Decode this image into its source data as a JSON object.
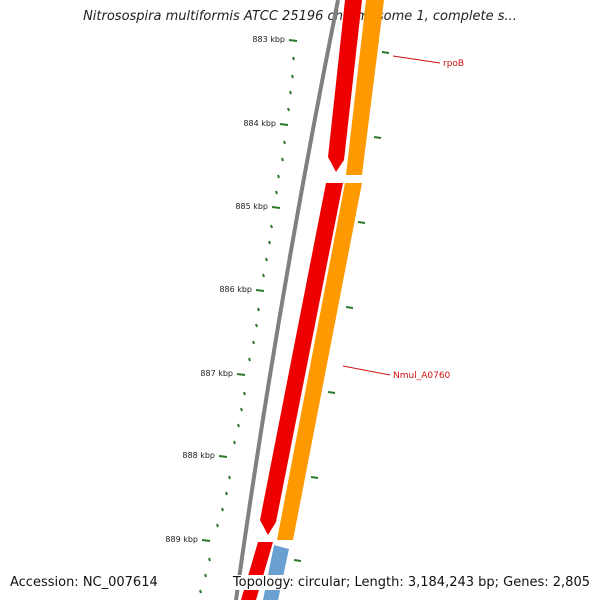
{
  "title": "Nitrosospira multiformis ATCC 25196 chromosome 1, complete s...",
  "footer": {
    "accession": "Accession: NC_007614",
    "summary": "Topology: circular; Length: 3,184,243 bp; Genes: 2,805"
  },
  "ruler": {
    "labels": [
      "883 kbp",
      "884 kbp",
      "885 kbp",
      "886 kbp",
      "887 kbp",
      "888 kbp",
      "889 kbp"
    ]
  },
  "gene_labels": [
    "rpoB",
    "Nmul_A0760"
  ],
  "colors": {
    "backbone": "#808080",
    "gene_red": "#ee0000",
    "gene_orange": "#ff9900",
    "gene_blue": "#6aa0d0",
    "ruler": "#2a7a2a",
    "label_red": "#d01010"
  }
}
